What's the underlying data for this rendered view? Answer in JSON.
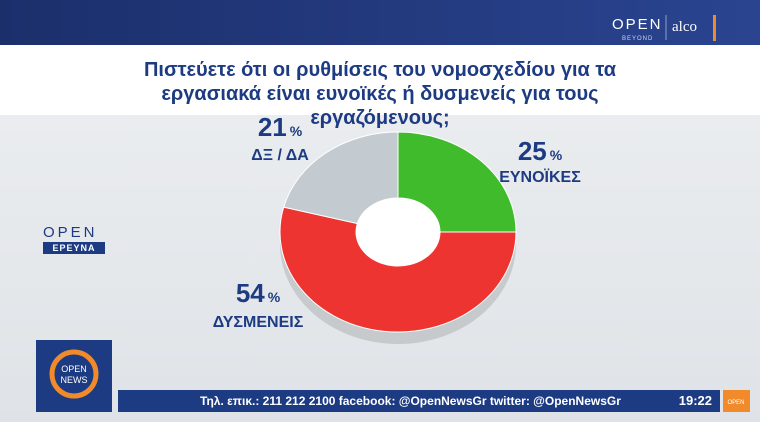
{
  "brand": {
    "top_logo": "OPEN",
    "top_logo_sub": "BEYOND",
    "partner": "alco",
    "side_logo": "OPEN",
    "side_logo_sub": "ΕΡΕΥΝΑ",
    "corner_logo": "OPEN",
    "corner_logo_sub": "NEWS",
    "small_logo": "OPEN"
  },
  "ticker": {
    "text": "Τηλ. επικ.: 211 212 2100 facebook: @OpenNewsGr twitter: @OpenNewsGr",
    "time": "19:22"
  },
  "chart_data": {
    "type": "donut",
    "title": "Πιστεύετε ότι οι ρυθμίσεις του νομοσχεδίου για τα εργασιακά είναι ευνοϊκές ή δυσμενείς για τους εργαζόμενους;",
    "categories": [
      "ΕΥΝΟΪΚΕΣ",
      "ΔΥΣΜΕΝΕΙΣ",
      "ΔΞ / ΔΑ"
    ],
    "values": [
      25,
      54,
      21
    ],
    "unit": "%",
    "colors": [
      "#3fbb2b",
      "#ee3430",
      "#c3cbd1"
    ]
  }
}
